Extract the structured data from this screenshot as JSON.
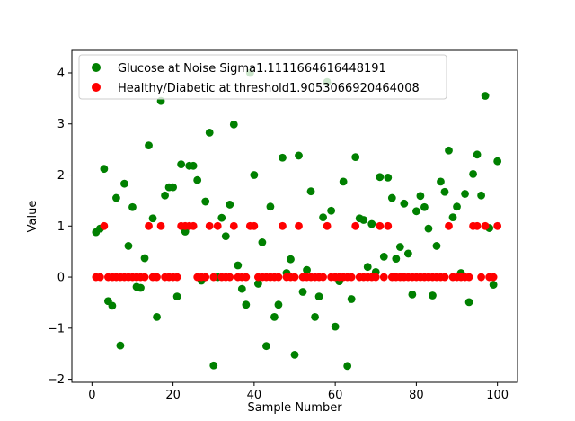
{
  "chart_data": {
    "type": "scatter",
    "title": "",
    "xlabel": "Sample Number",
    "ylabel": "Value",
    "xlim": [
      -4.95,
      104.95
    ],
    "ylim": [
      -2.06,
      4.44
    ],
    "xticks": [
      0,
      20,
      40,
      60,
      80,
      100
    ],
    "yticks": [
      -2,
      -1,
      0,
      1,
      2,
      3,
      4
    ],
    "grid": false,
    "legend_position": "upper-left",
    "x": [
      1,
      2,
      3,
      4,
      5,
      6,
      7,
      8,
      9,
      10,
      11,
      12,
      13,
      14,
      15,
      16,
      17,
      18,
      19,
      20,
      21,
      22,
      23,
      24,
      25,
      26,
      27,
      28,
      29,
      30,
      31,
      32,
      33,
      34,
      35,
      36,
      37,
      38,
      39,
      40,
      41,
      42,
      43,
      44,
      45,
      46,
      47,
      48,
      49,
      50,
      51,
      52,
      53,
      54,
      55,
      56,
      57,
      58,
      59,
      60,
      61,
      62,
      63,
      64,
      65,
      66,
      67,
      68,
      69,
      70,
      71,
      72,
      73,
      74,
      75,
      76,
      77,
      78,
      79,
      80,
      81,
      82,
      83,
      84,
      85,
      86,
      87,
      88,
      89,
      90,
      91,
      92,
      93,
      94,
      95,
      96,
      97,
      98,
      99,
      100
    ],
    "series": [
      {
        "name": "Glucose at Noise Sigma1.1111664616448191",
        "color": "#008000",
        "values": [
          0.88,
          0.95,
          2.12,
          -0.47,
          -0.56,
          1.55,
          -1.34,
          1.83,
          0.61,
          1.37,
          -0.19,
          -0.21,
          0.37,
          2.58,
          1.15,
          -0.78,
          3.45,
          1.6,
          1.76,
          1.76,
          -0.38,
          2.21,
          0.89,
          2.18,
          2.18,
          1.9,
          -0.07,
          1.48,
          2.83,
          -1.73,
          0.0,
          1.16,
          0.8,
          1.42,
          2.99,
          0.23,
          -0.23,
          -0.54,
          4.0,
          2.0,
          -0.13,
          0.68,
          -1.35,
          1.38,
          -0.78,
          -0.54,
          2.34,
          0.08,
          0.35,
          -1.52,
          2.38,
          -0.29,
          0.14,
          1.68,
          -0.78,
          -0.38,
          1.17,
          3.82,
          1.3,
          -0.97,
          -0.08,
          1.87,
          -1.74,
          -0.43,
          2.35,
          1.15,
          1.12,
          0.2,
          1.04,
          0.1,
          1.96,
          0.4,
          1.95,
          1.55,
          0.36,
          0.59,
          1.44,
          0.46,
          -0.34,
          1.29,
          1.59,
          1.37,
          0.95,
          -0.36,
          0.61,
          1.87,
          1.67,
          2.48,
          1.17,
          1.38,
          0.08,
          1.63,
          -0.49,
          2.02,
          2.4,
          1.6,
          3.55,
          0.96,
          -0.15,
          2.27
        ]
      },
      {
        "name": "Healthy/Diabetic at threshold1.9053066920464008",
        "color": "#ff0000",
        "values": [
          0,
          0,
          1,
          0,
          0,
          0,
          0,
          0,
          0,
          0,
          0,
          0,
          0,
          1,
          0,
          0,
          1,
          0,
          0,
          0,
          0,
          1,
          1,
          1,
          1,
          0,
          0,
          0,
          1,
          0,
          1,
          0,
          0,
          0,
          1,
          0,
          0,
          0,
          1,
          1,
          0,
          0,
          0,
          0,
          0,
          0,
          1,
          0,
          0,
          0,
          1,
          0,
          0,
          0,
          0,
          0,
          0,
          1,
          0,
          0,
          0,
          0,
          0,
          0,
          1,
          0,
          0,
          0,
          0,
          0,
          1,
          0,
          1,
          0,
          0,
          0,
          0,
          0,
          0,
          0,
          0,
          0,
          0,
          0,
          0,
          0,
          0,
          1,
          0,
          0,
          0,
          0,
          0,
          1,
          1,
          0,
          1,
          0,
          0,
          1
        ]
      }
    ]
  }
}
